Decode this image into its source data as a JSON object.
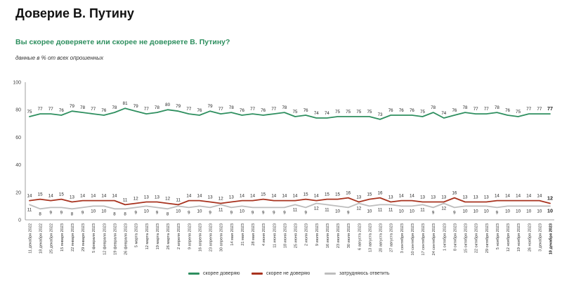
{
  "header": {
    "title": "Доверие В. Путину",
    "question": "Вы скорее доверяете или скорее не доверяете В. Путину?",
    "subtitle": "данные в % от всех опрошенных"
  },
  "colors": {
    "trust": "#2e8f5f",
    "distrust": "#a8321e",
    "unsure": "#bdbdbd"
  },
  "legend": {
    "trust": "скорее доверяю",
    "distrust": "скорее не доверяю",
    "unsure": "затрудняюсь ответить"
  },
  "chart_data": {
    "type": "line",
    "ylim": [
      0,
      100
    ],
    "yticks": [
      0,
      20,
      40,
      60,
      80,
      100
    ],
    "grid": false,
    "legend_position": "bottom",
    "categories": [
      "11 декабря 2022",
      "18 декабря 2022",
      "25 декабря 2022",
      "15 января 2023",
      "22 января 2023",
      "29 января 2023",
      "5 февраля 2023",
      "12 февраля 2023",
      "19 февраля 2023",
      "26 февраля 2023",
      "5 марта 2023",
      "12 марта 2023",
      "19 марта 2023",
      "26 марта 2023",
      "2 апреля 2023",
      "9 апреля 2023",
      "16 апреля 2023",
      "23 апреля 2023",
      "30 апреля 2023",
      "14 мая 2023",
      "21 мая 2023",
      "28 мая 2023",
      "4 июня 2023",
      "11 июня 2023",
      "18 июня 2023",
      "25 июня 2023",
      "2 июля 2023",
      "9 июля 2023",
      "16 июля 2023",
      "23 июля 2023",
      "30 июля 2023",
      "6 августа 2023",
      "13 августа 2023",
      "20 августа 2023",
      "27 августа 2023",
      "3 сентября 2023",
      "10 сентября 2023",
      "17 сентября 2023",
      "24 сентября 2023",
      "1 октября 2023",
      "8 октября 2023",
      "15 октября 2023",
      "22 октября 2023",
      "29 октября 2023",
      "5 ноября 2023",
      "12 ноября 2023",
      "19 ноября 2023",
      "26 ноября 2023",
      "3 декабря 2023",
      "10 декабря 2023"
    ],
    "highlight_last": true,
    "series": [
      {
        "name": "скорее доверяю",
        "key": "trust",
        "values": [
          75,
          77,
          77,
          76,
          79,
          78,
          77,
          76,
          78,
          81,
          79,
          77,
          78,
          80,
          79,
          77,
          76,
          79,
          77,
          78,
          76,
          77,
          76,
          77,
          78,
          75,
          76,
          74,
          74,
          75,
          75,
          75,
          75,
          73,
          76,
          76,
          76,
          75,
          78,
          74,
          76,
          78,
          77,
          77,
          78,
          76,
          75,
          77,
          77,
          77
        ]
      },
      {
        "name": "скорее не доверяю",
        "key": "distrust",
        "values": [
          14,
          15,
          14,
          15,
          13,
          14,
          14,
          14,
          14,
          11,
          12,
          13,
          13,
          12,
          11,
          14,
          14,
          13,
          12,
          13,
          14,
          14,
          15,
          14,
          14,
          14,
          15,
          14,
          15,
          15,
          16,
          13,
          15,
          16,
          13,
          14,
          14,
          13,
          13,
          13,
          16,
          13,
          13,
          13,
          14,
          14,
          14,
          14,
          14,
          12
        ]
      },
      {
        "name": "затрудняюсь ответить",
        "key": "unsure",
        "values": [
          11,
          8,
          9,
          9,
          8,
          9,
          10,
          10,
          8,
          8,
          9,
          10,
          9,
          8,
          10,
          9,
          10,
          9,
          11,
          9,
          10,
          9,
          9,
          9,
          9,
          11,
          9,
          12,
          11,
          10,
          9,
          12,
          10,
          11,
          11,
          10,
          10,
          11,
          9,
          12,
          9,
          10,
          10,
          10,
          9,
          10,
          10,
          10,
          10,
          10
        ]
      }
    ]
  }
}
